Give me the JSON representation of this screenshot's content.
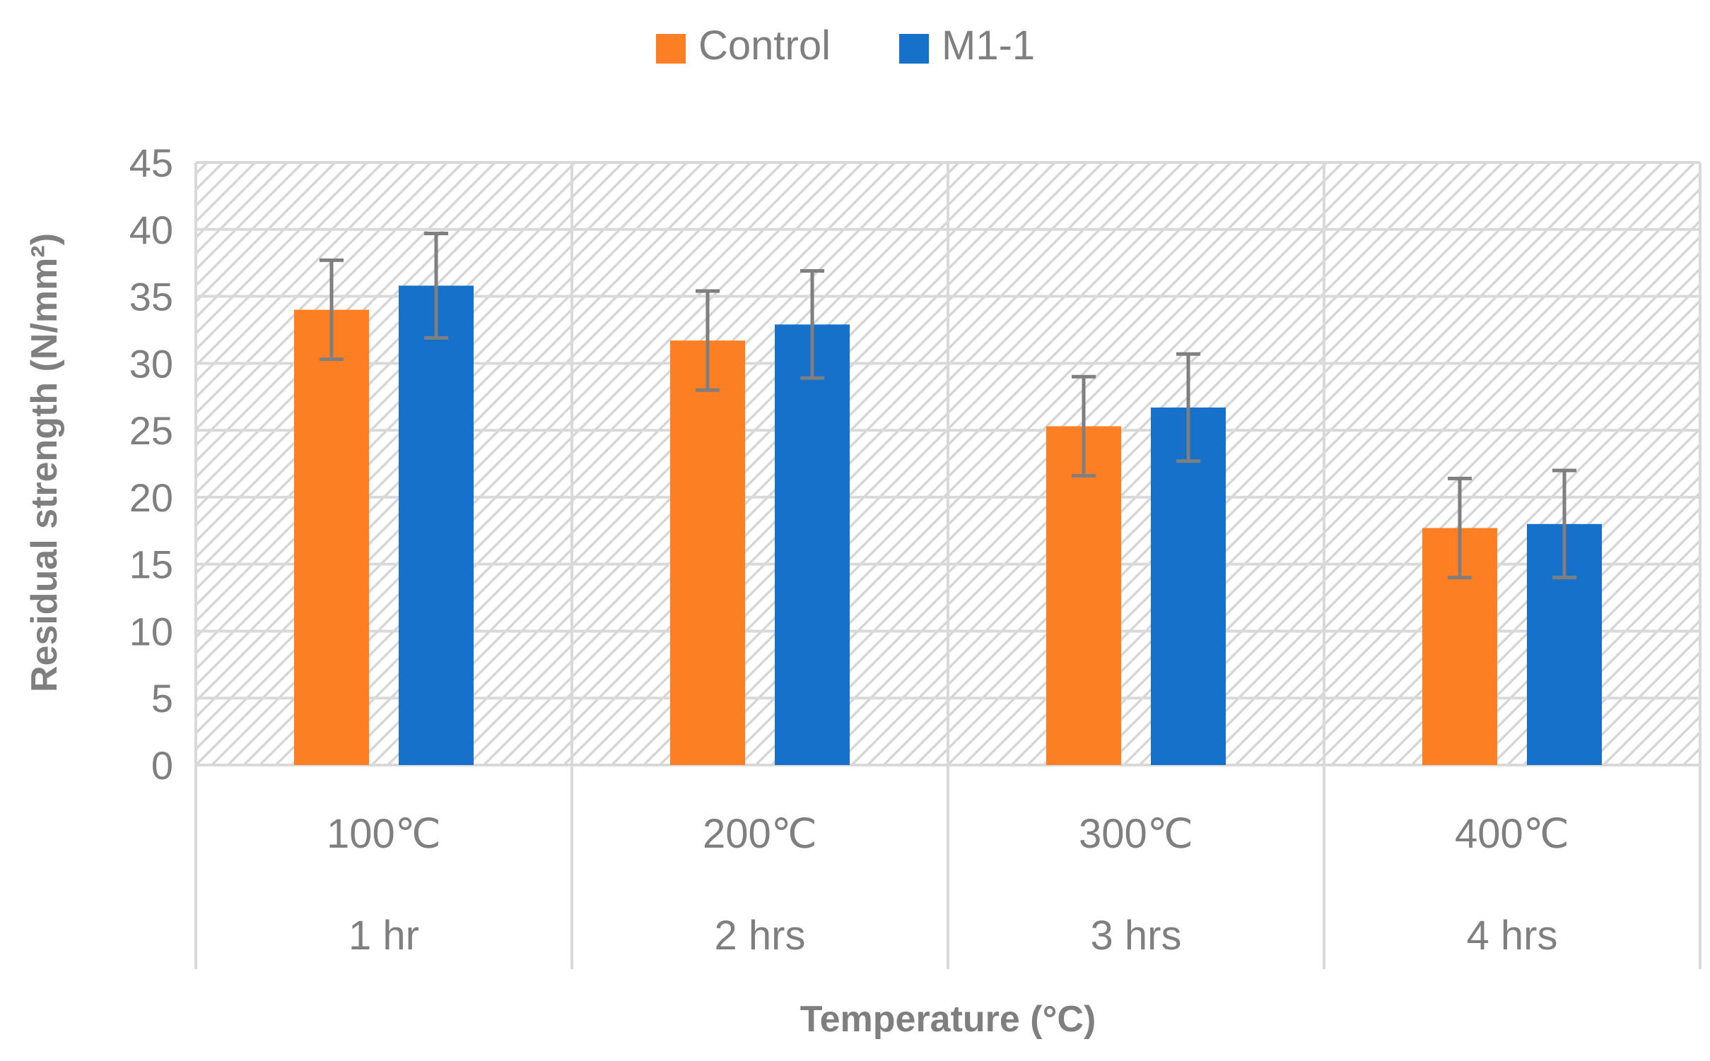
{
  "chart_data": {
    "type": "bar",
    "title": "",
    "xlabel": "Temperature (°C)",
    "ylabel": "Residual strength (N/mm²)",
    "ylim": [
      0,
      45
    ],
    "yticks": [
      0,
      5,
      10,
      15,
      20,
      25,
      30,
      35,
      40,
      45
    ],
    "grid": true,
    "legend_position": "top-center",
    "categories": [
      {
        "temperature": "100℃",
        "duration": "1 hr"
      },
      {
        "temperature": "200℃",
        "duration": "2 hrs"
      },
      {
        "temperature": "300℃",
        "duration": "3 hrs"
      },
      {
        "temperature": "400℃",
        "duration": "4 hrs"
      }
    ],
    "series": [
      {
        "name": "Control",
        "color": "#fd7f23",
        "values": [
          34.0,
          31.7,
          25.3,
          17.7
        ],
        "error": [
          3.7,
          3.7,
          3.7,
          3.7
        ]
      },
      {
        "name": "M1-1",
        "color": "#1671cb",
        "values": [
          35.8,
          32.9,
          26.7,
          18.0
        ],
        "error": [
          3.9,
          4.0,
          4.0,
          4.0
        ]
      }
    ]
  }
}
